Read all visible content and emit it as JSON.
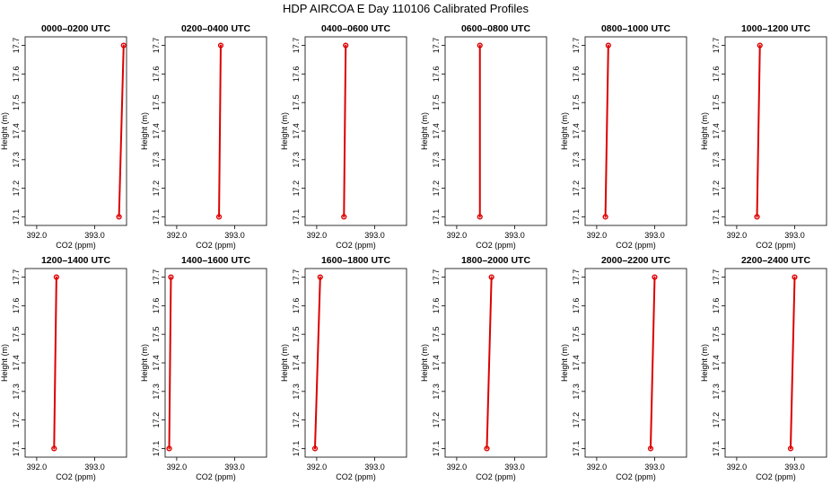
{
  "title": "HDP AIRCOA E  Day 110106  Calibrated Profiles",
  "colors": {
    "profile": "#dd0000",
    "axes": "#000000",
    "background": "#ffffff"
  },
  "chart_data": [
    {
      "type": "line",
      "title": "0000–0200 UTC",
      "xlabel": "CO2 (ppm)",
      "ylabel": "Height (m)",
      "xlim": [
        391.8,
        393.55
      ],
      "ylim": [
        17.07,
        17.73
      ],
      "xticks": [
        392.0,
        393.0
      ],
      "xtick_labels": [
        "392.0",
        "393.0"
      ],
      "yticks": [
        17.1,
        17.2,
        17.3,
        17.4,
        17.5,
        17.6,
        17.7
      ],
      "ytick_labels": [
        "17.1",
        "17.2",
        "17.3",
        "17.4",
        "17.5",
        "17.6",
        "17.7"
      ],
      "x": [
        393.42,
        393.5
      ],
      "y": [
        17.1,
        17.7
      ],
      "grid": false,
      "legend": "none"
    },
    {
      "type": "line",
      "title": "0200–0400 UTC",
      "xlabel": "CO2 (ppm)",
      "ylabel": "Height (m)",
      "xlim": [
        391.8,
        393.55
      ],
      "ylim": [
        17.07,
        17.73
      ],
      "xticks": [
        392.0,
        393.0
      ],
      "xtick_labels": [
        "392.0",
        "393.0"
      ],
      "yticks": [
        17.1,
        17.2,
        17.3,
        17.4,
        17.5,
        17.6,
        17.7
      ],
      "ytick_labels": [
        "17.1",
        "17.2",
        "17.3",
        "17.4",
        "17.5",
        "17.6",
        "17.7"
      ],
      "x": [
        392.73,
        392.76
      ],
      "y": [
        17.1,
        17.7
      ],
      "grid": false,
      "legend": "none"
    },
    {
      "type": "line",
      "title": "0400–0600 UTC",
      "xlabel": "CO2 (ppm)",
      "ylabel": "Height (m)",
      "xlim": [
        391.8,
        393.55
      ],
      "ylim": [
        17.07,
        17.73
      ],
      "xticks": [
        392.0,
        393.0
      ],
      "xtick_labels": [
        "392.0",
        "393.0"
      ],
      "yticks": [
        17.1,
        17.2,
        17.3,
        17.4,
        17.5,
        17.6,
        17.7
      ],
      "ytick_labels": [
        "17.1",
        "17.2",
        "17.3",
        "17.4",
        "17.5",
        "17.6",
        "17.7"
      ],
      "x": [
        392.47,
        392.5
      ],
      "y": [
        17.1,
        17.7
      ],
      "grid": false,
      "legend": "none"
    },
    {
      "type": "line",
      "title": "0600–0800 UTC",
      "xlabel": "CO2 (ppm)",
      "ylabel": "Height (m)",
      "xlim": [
        391.8,
        393.55
      ],
      "ylim": [
        17.07,
        17.73
      ],
      "xticks": [
        392.0,
        393.0
      ],
      "xtick_labels": [
        "392.0",
        "393.0"
      ],
      "yticks": [
        17.1,
        17.2,
        17.3,
        17.4,
        17.5,
        17.6,
        17.7
      ],
      "ytick_labels": [
        "17.1",
        "17.2",
        "17.3",
        "17.4",
        "17.5",
        "17.6",
        "17.7"
      ],
      "x": [
        392.4,
        392.4
      ],
      "y": [
        17.1,
        17.7
      ],
      "grid": false,
      "legend": "none"
    },
    {
      "type": "line",
      "title": "0800–1000 UTC",
      "xlabel": "CO2 (ppm)",
      "ylabel": "Height (m)",
      "xlim": [
        391.8,
        393.55
      ],
      "ylim": [
        17.07,
        17.73
      ],
      "xticks": [
        392.0,
        393.0
      ],
      "xtick_labels": [
        "392.0",
        "393.0"
      ],
      "yticks": [
        17.1,
        17.2,
        17.3,
        17.4,
        17.5,
        17.6,
        17.7
      ],
      "ytick_labels": [
        "17.1",
        "17.2",
        "17.3",
        "17.4",
        "17.5",
        "17.6",
        "17.7"
      ],
      "x": [
        392.15,
        392.2
      ],
      "y": [
        17.1,
        17.7
      ],
      "grid": false,
      "legend": "none"
    },
    {
      "type": "line",
      "title": "1000–1200 UTC",
      "xlabel": "CO2 (ppm)",
      "ylabel": "Height (m)",
      "xlim": [
        391.8,
        393.55
      ],
      "ylim": [
        17.07,
        17.73
      ],
      "xticks": [
        392.0,
        393.0
      ],
      "xtick_labels": [
        "392.0",
        "393.0"
      ],
      "yticks": [
        17.1,
        17.2,
        17.3,
        17.4,
        17.5,
        17.6,
        17.7
      ],
      "ytick_labels": [
        "17.1",
        "17.2",
        "17.3",
        "17.4",
        "17.5",
        "17.6",
        "17.7"
      ],
      "x": [
        392.35,
        392.4
      ],
      "y": [
        17.1,
        17.7
      ],
      "grid": false,
      "legend": "none"
    },
    {
      "type": "line",
      "title": "1200–1400 UTC",
      "xlabel": "CO2 (ppm)",
      "ylabel": "Height (m)",
      "xlim": [
        391.8,
        393.55
      ],
      "ylim": [
        17.07,
        17.73
      ],
      "xticks": [
        392.0,
        393.0
      ],
      "xtick_labels": [
        "392.0",
        "393.0"
      ],
      "yticks": [
        17.1,
        17.2,
        17.3,
        17.4,
        17.5,
        17.6,
        17.7
      ],
      "ytick_labels": [
        "17.1",
        "17.2",
        "17.3",
        "17.4",
        "17.5",
        "17.6",
        "17.7"
      ],
      "x": [
        392.3,
        392.34
      ],
      "y": [
        17.1,
        17.7
      ],
      "grid": false,
      "legend": "none"
    },
    {
      "type": "line",
      "title": "1400–1600 UTC",
      "xlabel": "CO2 (ppm)",
      "ylabel": "Height (m)",
      "xlim": [
        391.8,
        393.55
      ],
      "ylim": [
        17.07,
        17.73
      ],
      "xticks": [
        392.0,
        393.0
      ],
      "xtick_labels": [
        "392.0",
        "393.0"
      ],
      "yticks": [
        17.1,
        17.2,
        17.3,
        17.4,
        17.5,
        17.6,
        17.7
      ],
      "ytick_labels": [
        "17.1",
        "17.2",
        "17.3",
        "17.4",
        "17.5",
        "17.6",
        "17.7"
      ],
      "x": [
        391.87,
        391.9
      ],
      "y": [
        17.1,
        17.7
      ],
      "grid": false,
      "legend": "none"
    },
    {
      "type": "line",
      "title": "1600–1800 UTC",
      "xlabel": "CO2 (ppm)",
      "ylabel": "Height (m)",
      "xlim": [
        391.8,
        393.55
      ],
      "ylim": [
        17.07,
        17.73
      ],
      "xticks": [
        392.0,
        393.0
      ],
      "xtick_labels": [
        "392.0",
        "393.0"
      ],
      "yticks": [
        17.1,
        17.2,
        17.3,
        17.4,
        17.5,
        17.6,
        17.7
      ],
      "ytick_labels": [
        "17.1",
        "17.2",
        "17.3",
        "17.4",
        "17.5",
        "17.6",
        "17.7"
      ],
      "x": [
        391.97,
        392.06
      ],
      "y": [
        17.1,
        17.7
      ],
      "grid": false,
      "legend": "none"
    },
    {
      "type": "line",
      "title": "1800–2000 UTC",
      "xlabel": "CO2 (ppm)",
      "ylabel": "Height (m)",
      "xlim": [
        391.8,
        393.55
      ],
      "ylim": [
        17.07,
        17.73
      ],
      "xticks": [
        392.0,
        393.0
      ],
      "xtick_labels": [
        "392.0",
        "393.0"
      ],
      "yticks": [
        17.1,
        17.2,
        17.3,
        17.4,
        17.5,
        17.6,
        17.7
      ],
      "ytick_labels": [
        "17.1",
        "17.2",
        "17.3",
        "17.4",
        "17.5",
        "17.6",
        "17.7"
      ],
      "x": [
        392.52,
        392.6
      ],
      "y": [
        17.1,
        17.7
      ],
      "grid": false,
      "legend": "none"
    },
    {
      "type": "line",
      "title": "2000–2200 UTC",
      "xlabel": "CO2 (ppm)",
      "ylabel": "Height (m)",
      "xlim": [
        391.8,
        393.55
      ],
      "ylim": [
        17.07,
        17.73
      ],
      "xticks": [
        392.0,
        393.0
      ],
      "xtick_labels": [
        "392.0",
        "393.0"
      ],
      "yticks": [
        17.1,
        17.2,
        17.3,
        17.4,
        17.5,
        17.6,
        17.7
      ],
      "ytick_labels": [
        "17.1",
        "17.2",
        "17.3",
        "17.4",
        "17.5",
        "17.6",
        "17.7"
      ],
      "x": [
        392.93,
        393.0
      ],
      "y": [
        17.1,
        17.7
      ],
      "grid": false,
      "legend": "none"
    },
    {
      "type": "line",
      "title": "2200–2400 UTC",
      "xlabel": "CO2 (ppm)",
      "ylabel": "Height (m)",
      "xlim": [
        391.8,
        393.55
      ],
      "ylim": [
        17.07,
        17.73
      ],
      "xticks": [
        392.0,
        393.0
      ],
      "xtick_labels": [
        "392.0",
        "393.0"
      ],
      "yticks": [
        17.1,
        17.2,
        17.3,
        17.4,
        17.5,
        17.6,
        17.7
      ],
      "ytick_labels": [
        "17.1",
        "17.2",
        "17.3",
        "17.4",
        "17.5",
        "17.6",
        "17.7"
      ],
      "x": [
        392.93,
        393.0
      ],
      "y": [
        17.1,
        17.7
      ],
      "grid": false,
      "legend": "none"
    }
  ]
}
